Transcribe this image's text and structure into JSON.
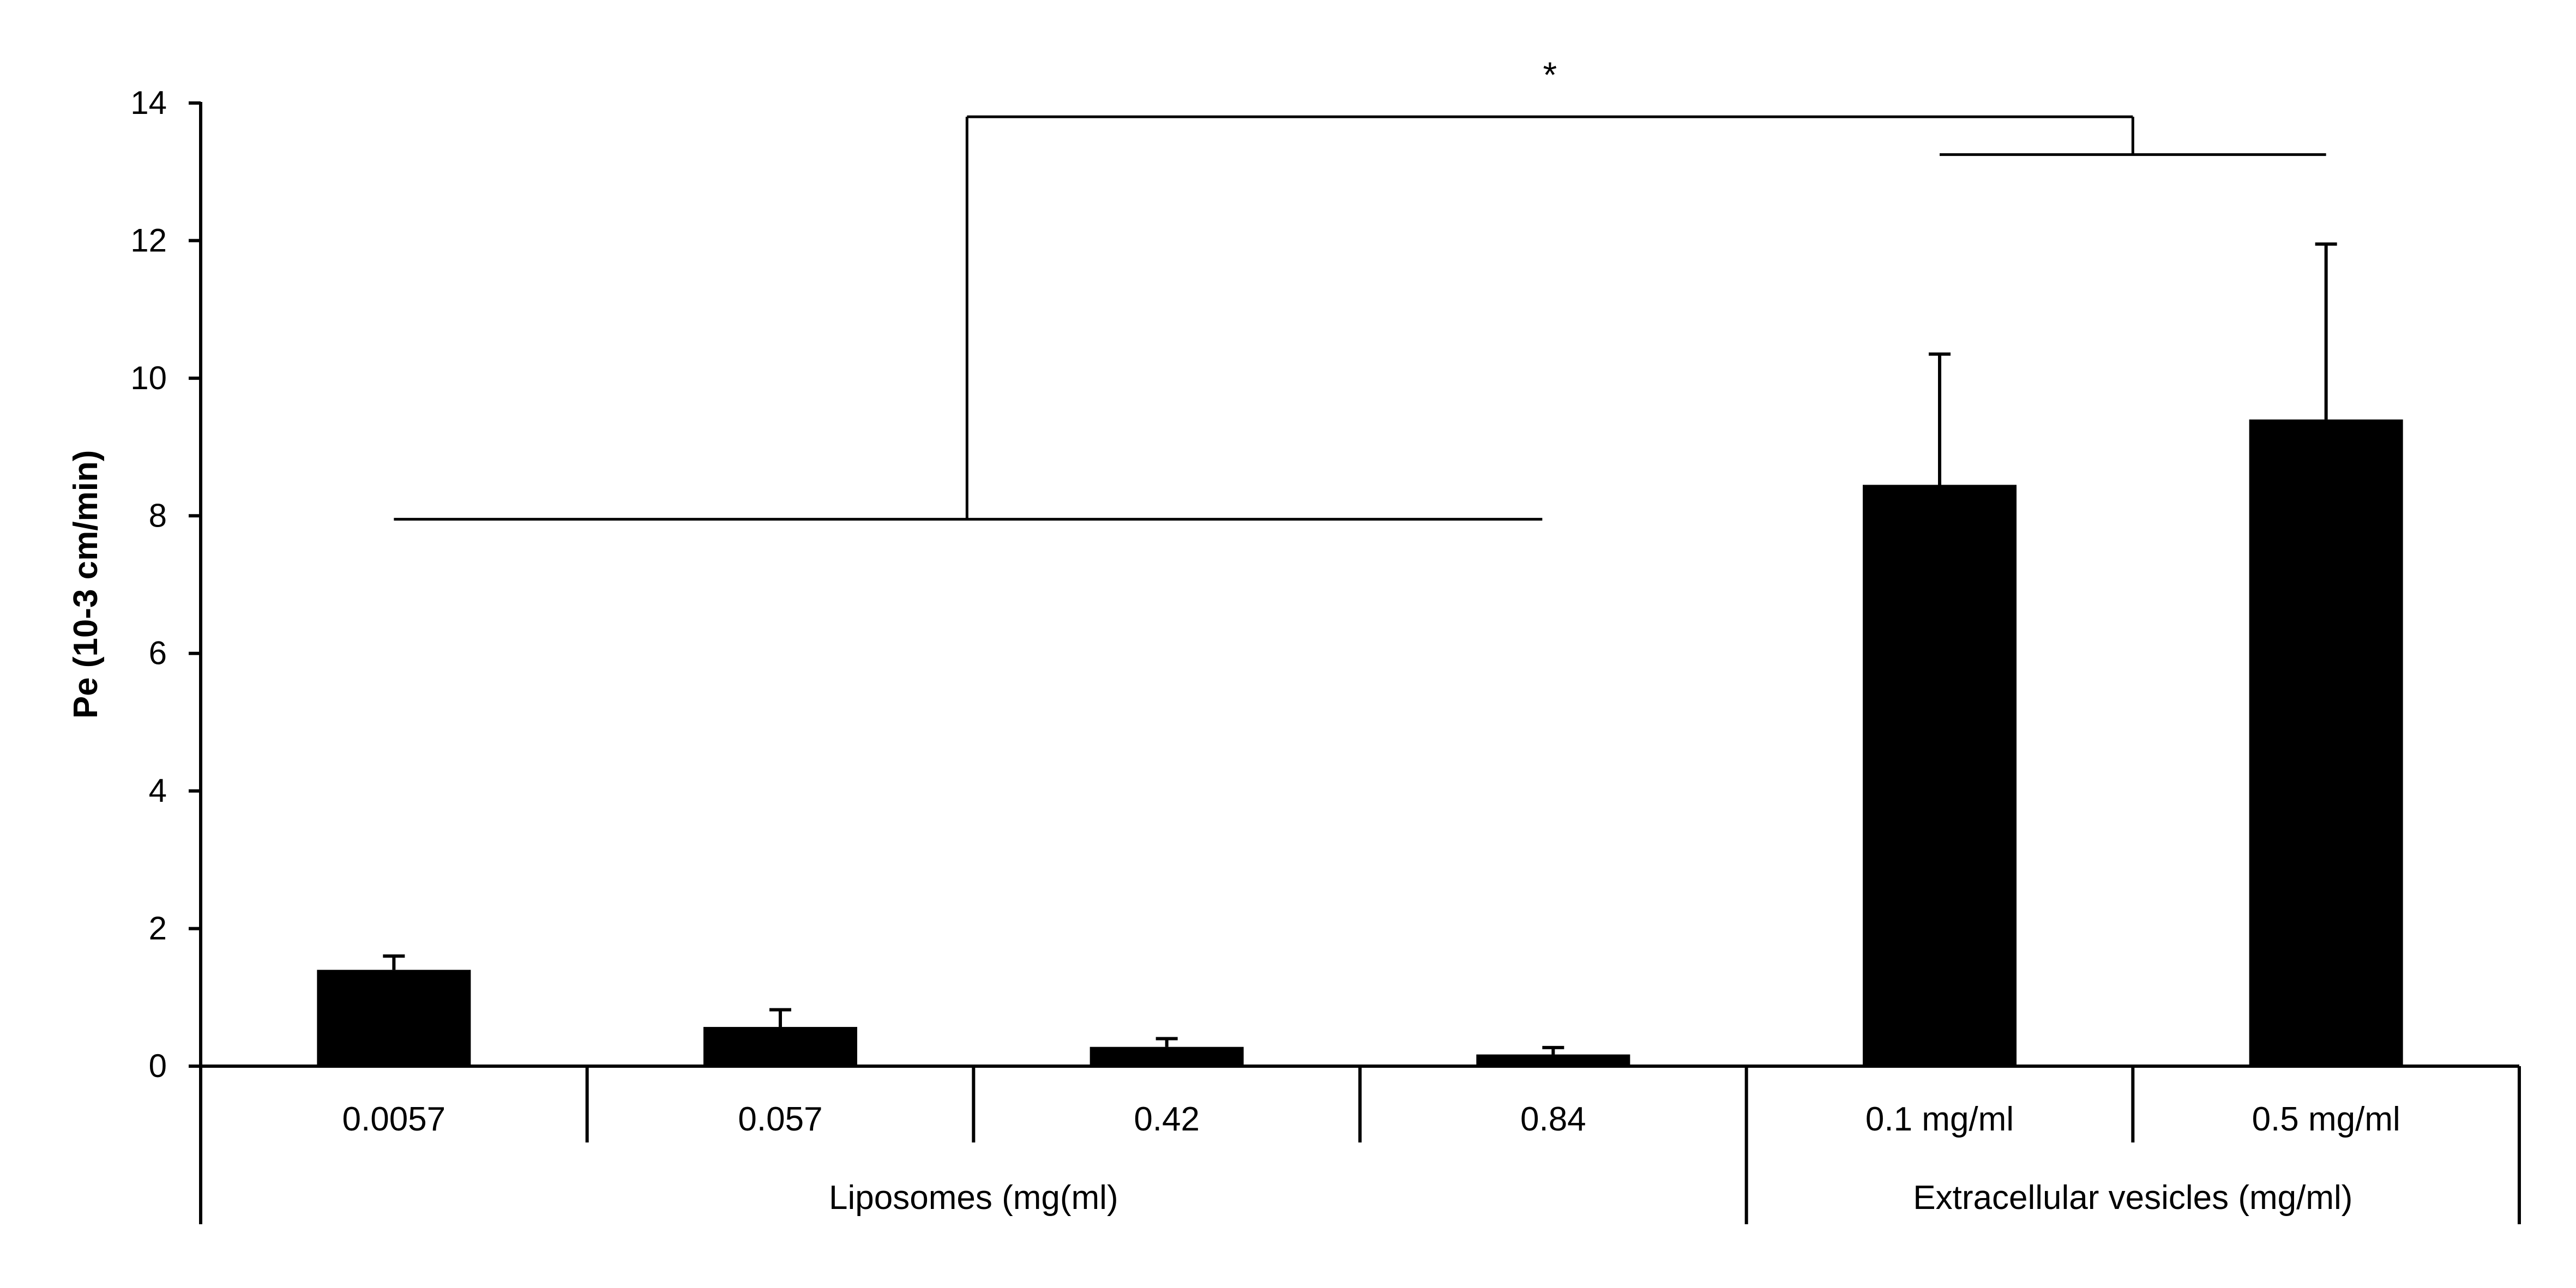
{
  "chart_data": {
    "type": "bar",
    "title": "",
    "xlabel": "",
    "ylabel": "Pe (10-3 cm/min)",
    "ylim": [
      0,
      14
    ],
    "yticks": [
      0,
      2,
      4,
      6,
      8,
      10,
      12,
      14
    ],
    "grid": false,
    "categories": [
      "0.0057",
      "0.057",
      "0.42",
      "0.84",
      "0.1 mg/ml",
      "0.5 mg/ml"
    ],
    "values": [
      1.4,
      0.57,
      0.28,
      0.17,
      8.45,
      9.4
    ],
    "errors": [
      0.2,
      0.25,
      0.12,
      0.1,
      1.9,
      2.55
    ],
    "bar_color": "#000000",
    "groups": [
      {
        "label": "Liposomes (mg(ml)",
        "start": 0,
        "end": 3
      },
      {
        "label": "Extracellular vesicles (mg/ml)",
        "start": 4,
        "end": 5
      }
    ],
    "significance": {
      "label": "*",
      "left_group": {
        "start": 0,
        "end": 3,
        "y": 7.95
      },
      "right_group": {
        "start": 4,
        "end": 5,
        "y": 13.25
      },
      "top_y": 13.8
    }
  }
}
